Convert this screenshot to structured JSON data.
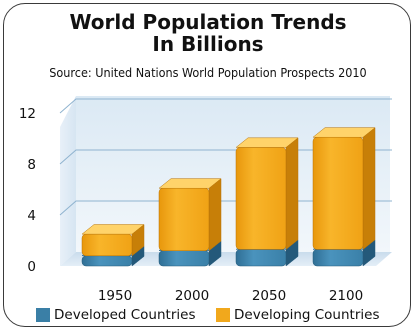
{
  "chart_data": {
    "type": "bar",
    "stacked": true,
    "three_d": true,
    "title": "World Population Trends In Billions",
    "title_lines": [
      "World Population Trends",
      "In Billions"
    ],
    "subtitle": "Source:  United Nations World Population Prospects 2010",
    "categories": [
      "1950",
      "2000",
      "2050",
      "2100"
    ],
    "series": [
      {
        "name": "Developed Countries",
        "values": [
          0.8,
          1.2,
          1.3,
          1.3
        ],
        "color": "#3a7fa6"
      },
      {
        "name": "Developing Countries",
        "values": [
          1.7,
          4.9,
          8.0,
          8.8
        ],
        "color": "#f1a81c"
      }
    ],
    "yticks": [
      "0",
      "4",
      "8",
      "12"
    ],
    "ylim": [
      0,
      12
    ],
    "grid": true,
    "legend_position": "bottom"
  }
}
